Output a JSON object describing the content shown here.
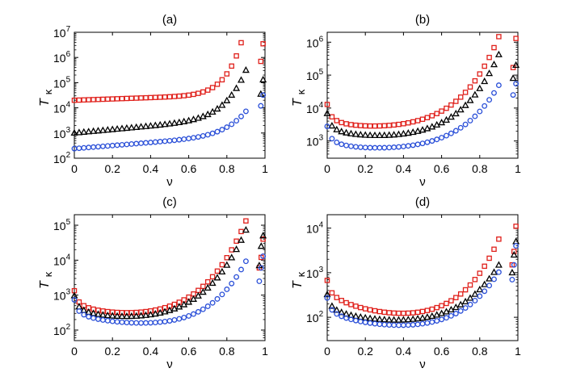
{
  "chart_data": [
    {
      "type": "scatter",
      "title": "(a)",
      "xlabel": "ν",
      "ylabel": "T",
      "ylabel_sub": "κ",
      "xlim": [
        0,
        1
      ],
      "ylim": [
        100,
        10000000
      ],
      "yscale": "log",
      "xticks": [
        "0",
        "0.2",
        "0.4",
        "0.6",
        "0.8",
        "1"
      ],
      "yticks": [
        {
          "base": "10",
          "exp": "2"
        },
        {
          "base": "10",
          "exp": "3"
        },
        {
          "base": "10",
          "exp": "4"
        },
        {
          "base": "10",
          "exp": "5"
        },
        {
          "base": "10",
          "exp": "6"
        },
        {
          "base": "10",
          "exp": "7"
        }
      ],
      "grid": false,
      "series": [
        {
          "marker": "square",
          "color": "#e0201b",
          "kind": "exp",
          "a": 20000,
          "b": 0.6,
          "c": 18,
          "k": 10,
          "tail_x": [
            0.978,
            0.99
          ],
          "tail_y": [
            700000,
            3500000
          ]
        },
        {
          "marker": "triangle",
          "color": "#000000",
          "kind": "exp",
          "a": 1000,
          "b": 1.6,
          "c": 10,
          "k": 8,
          "tail_x": [
            0.978,
            0.99
          ],
          "tail_y": [
            35000,
            130000
          ]
        },
        {
          "marker": "circle",
          "color": "#2a4fd8",
          "kind": "exp",
          "a": 240,
          "b": 1.4,
          "c": 5,
          "k": 8,
          "tail_x": [
            0.978,
            0.99
          ],
          "tail_y": [
            12000,
            32000
          ]
        }
      ]
    },
    {
      "type": "scatter",
      "title": "(b)",
      "xlabel": "ν",
      "ylabel": "T",
      "ylabel_sub": "κ",
      "xlim": [
        0,
        1
      ],
      "ylim": [
        300,
        2000000
      ],
      "yscale": "log",
      "xticks": [
        "0",
        "0.2",
        "0.4",
        "0.6",
        "0.8",
        "1"
      ],
      "yticks": [
        {
          "base": "10",
          "exp": "3"
        },
        {
          "base": "10",
          "exp": "4"
        },
        {
          "base": "10",
          "exp": "5"
        },
        {
          "base": "10",
          "exp": "6"
        }
      ],
      "grid": false,
      "series": [
        {
          "marker": "square",
          "color": "#e0201b",
          "kind": "u",
          "m": 2500,
          "x0": 0.2,
          "p": 3.5,
          "w": 0.03,
          "b": 6,
          "c": 2.2,
          "k": 6,
          "tail_x": [
            0.975,
            0.99
          ],
          "tail_y": [
            170000,
            1300000
          ]
        },
        {
          "marker": "triangle",
          "color": "#000000",
          "kind": "u",
          "m": 1300,
          "x0": 0.25,
          "p": 2.5,
          "w": 0.03,
          "b": 4.5,
          "c": 3.5,
          "k": 6,
          "tail_x": [
            0.975,
            0.99
          ],
          "tail_y": [
            80000,
            200000
          ]
        },
        {
          "marker": "circle",
          "color": "#2a4fd8",
          "kind": "u",
          "m": 550,
          "x0": 0.22,
          "p": 2.5,
          "w": 0.03,
          "b": 4,
          "c": 1.8,
          "k": 6,
          "tail_x": [
            0.975,
            0.99
          ],
          "tail_y": [
            25000,
            55000
          ]
        }
      ]
    },
    {
      "type": "scatter",
      "title": "(c)",
      "xlabel": "ν",
      "ylabel": "T",
      "ylabel_sub": "κ",
      "xlim": [
        0,
        1
      ],
      "ylim": [
        50,
        200000
      ],
      "yscale": "log",
      "xticks": [
        "0",
        "0.2",
        "0.4",
        "0.6",
        "0.8",
        "1"
      ],
      "yticks": [
        {
          "base": "10",
          "exp": "2"
        },
        {
          "base": "10",
          "exp": "3"
        },
        {
          "base": "10",
          "exp": "4"
        },
        {
          "base": "10",
          "exp": "5"
        }
      ],
      "grid": false,
      "series": [
        {
          "marker": "square",
          "color": "#e0201b",
          "kind": "u",
          "m": 280,
          "x0": 0.3,
          "p": 3.5,
          "w": 0.025,
          "b": 3,
          "c": 5,
          "k": 6,
          "tail_x": [
            0.97,
            0.98,
            0.99
          ],
          "tail_y": [
            6000,
            12000,
            40000
          ]
        },
        {
          "marker": "triangle",
          "color": "#000000",
          "kind": "u",
          "m": 220,
          "x0": 0.3,
          "p": 2.5,
          "w": 0.025,
          "b": 3,
          "c": 5,
          "k": 6,
          "tail_x": [
            0.97,
            0.98,
            0.99
          ],
          "tail_y": [
            7000,
            25000,
            50000
          ]
        },
        {
          "marker": "circle",
          "color": "#2a4fd8",
          "kind": "u",
          "m": 140,
          "x0": 0.45,
          "p": 2,
          "w": 0.025,
          "b": 4,
          "c": 2.5,
          "k": 6,
          "tail_x": [
            0.97,
            0.98,
            0.99
          ],
          "tail_y": [
            2500,
            6000,
            13000
          ]
        }
      ]
    },
    {
      "type": "scatter",
      "title": "(d)",
      "xlabel": "ν",
      "ylabel": "T",
      "ylabel_sub": "κ",
      "xlim": [
        0,
        1
      ],
      "ylim": [
        30,
        20000
      ],
      "yscale": "log",
      "xticks": [
        "0",
        "0.2",
        "0.4",
        "0.6",
        "0.8",
        "1"
      ],
      "yticks": [
        {
          "base": "10",
          "exp": "2"
        },
        {
          "base": "10",
          "exp": "3"
        },
        {
          "base": "10",
          "exp": "4"
        }
      ],
      "grid": false,
      "series": [
        {
          "marker": "square",
          "color": "#e0201b",
          "kind": "u",
          "m": 110,
          "x0": 0.45,
          "p": 4,
          "w": 0.02,
          "b": 4,
          "c": 1.5,
          "k": 6,
          "tail_x": [
            0.97,
            0.98,
            0.99
          ],
          "tail_y": [
            1500,
            3000,
            11000
          ]
        },
        {
          "marker": "triangle",
          "color": "#000000",
          "kind": "u",
          "m": 80,
          "x0": 0.4,
          "p": 2.5,
          "w": 0.02,
          "b": 2.8,
          "c": 1.2,
          "k": 6,
          "tail_x": [
            0.97,
            0.98,
            0.99
          ],
          "tail_y": [
            1000,
            2500,
            5000
          ]
        },
        {
          "marker": "circle",
          "color": "#2a4fd8",
          "kind": "u",
          "m": 60,
          "x0": 0.45,
          "p": 2.5,
          "w": 0.02,
          "b": 2.5,
          "c": 1.5,
          "k": 6,
          "tail_x": [
            0.97,
            0.98,
            0.99
          ],
          "tail_y": [
            700,
            1500,
            4000
          ]
        }
      ]
    }
  ]
}
